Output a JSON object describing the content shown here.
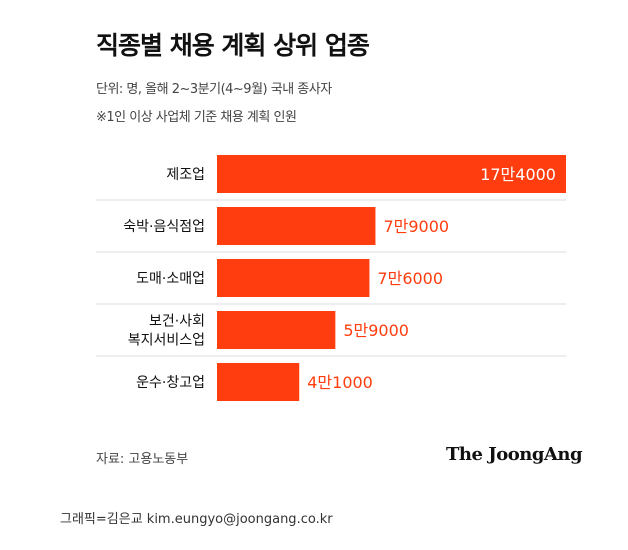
{
  "title": "직종별 채용 계획 상위 업종",
  "unit_note": "단위: 명, 올해 2~3분기(4~9월) 국내 종사자",
  "basis_note": "※1인 이상 사업체 기준 채용 계획 인원",
  "source": "자료: 고용노동부",
  "brand": "The JoongAng",
  "credit": "그래픽=김은교 kim.eungyo@joongang.co.kr",
  "colors": {
    "bar": "#ff3d0f",
    "label_inside": "#ffffff",
    "label_outside": "#ff3d0f",
    "separator": "#dddddd"
  },
  "chart_data": {
    "type": "bar",
    "orientation": "horizontal",
    "title": "직종별 채용 계획 상위 업종",
    "categories": [
      [
        "제조업"
      ],
      [
        "숙박·음식점업"
      ],
      [
        "도매·소매업"
      ],
      [
        "보건·사회",
        "복지서비스업"
      ],
      [
        "운수·창고업"
      ]
    ],
    "values": [
      174000,
      79000,
      76000,
      59000,
      41000
    ],
    "value_labels": [
      "17만4000",
      "7만9000",
      "7만6000",
      "5만9000",
      "4만1000"
    ],
    "xlim": [
      0,
      174000
    ],
    "grid": false
  }
}
